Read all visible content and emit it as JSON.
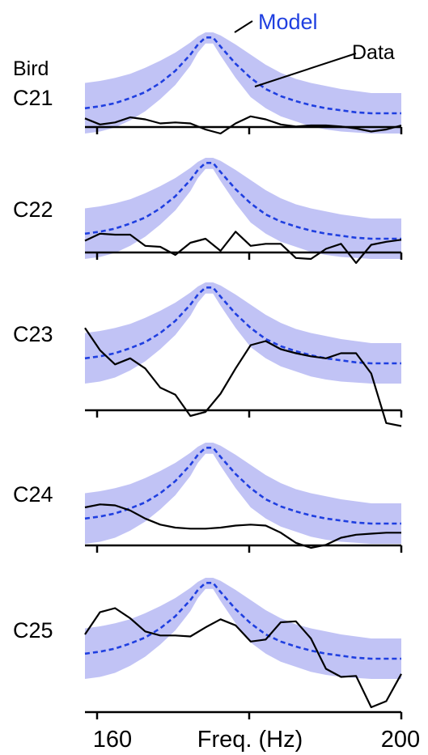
{
  "colors": {
    "model": "#1f3fe0",
    "band": "#b6b8f3",
    "data": "#000000",
    "axis": "#000000"
  },
  "annotations": {
    "model_label": "Model",
    "data_label": "Data",
    "bird_label": "Bird"
  },
  "x_axis": {
    "label": "Freq. (Hz)",
    "tick_labels": [
      "160",
      "200"
    ],
    "range": [
      158,
      200
    ]
  },
  "chart_data": [
    {
      "type": "line",
      "panel": "C21",
      "series": [
        {
          "name": "Model",
          "style": "dashed",
          "x": [
            158,
            160,
            162,
            164,
            166,
            168,
            170,
            172,
            173,
            174,
            175,
            176,
            178,
            180,
            182,
            184,
            186,
            188,
            190,
            192,
            194,
            196,
            198,
            200
          ],
          "y": [
            0.25,
            0.27,
            0.3,
            0.35,
            0.41,
            0.5,
            0.62,
            0.78,
            0.88,
            0.95,
            0.95,
            0.86,
            0.69,
            0.55,
            0.44,
            0.37,
            0.32,
            0.28,
            0.25,
            0.23,
            0.21,
            0.2,
            0.2,
            0.2
          ]
        },
        {
          "name": "Data",
          "x": [
            158,
            160,
            162,
            164,
            166,
            168,
            170,
            172,
            174,
            176,
            178,
            180,
            182,
            184,
            186,
            188,
            190,
            192,
            194,
            196,
            198,
            200
          ],
          "y": [
            0.15,
            0.09,
            0.11,
            0.16,
            0.14,
            0.1,
            0.11,
            0.1,
            0.04,
            0.0,
            0.1,
            0.17,
            0.14,
            0.09,
            0.07,
            0.08,
            0.08,
            0.07,
            0.05,
            0.02,
            0.04,
            0.08
          ]
        }
      ],
      "band": {
        "lower": [
          0.0,
          0.02,
          0.06,
          0.13,
          0.22,
          0.34,
          0.48,
          0.67,
          0.8,
          0.89,
          0.89,
          0.77,
          0.55,
          0.36,
          0.25,
          0.17,
          0.12,
          0.07,
          0.04,
          0.02,
          0.01,
          0.0,
          0.0,
          0.0
        ],
        "upper": [
          0.5,
          0.52,
          0.55,
          0.59,
          0.65,
          0.72,
          0.8,
          0.9,
          0.96,
          1.0,
          1.0,
          0.97,
          0.88,
          0.78,
          0.68,
          0.6,
          0.54,
          0.5,
          0.47,
          0.44,
          0.42,
          0.4,
          0.4,
          0.4
        ]
      }
    },
    {
      "type": "line",
      "panel": "C22",
      "series": [
        {
          "name": "Model",
          "style": "dashed",
          "x": [
            158,
            160,
            162,
            164,
            166,
            168,
            170,
            172,
            173,
            174,
            175,
            176,
            178,
            180,
            182,
            184,
            186,
            188,
            190,
            192,
            194,
            196,
            198,
            200
          ],
          "y": [
            0.25,
            0.27,
            0.3,
            0.35,
            0.41,
            0.5,
            0.62,
            0.78,
            0.88,
            0.95,
            0.95,
            0.86,
            0.69,
            0.55,
            0.44,
            0.37,
            0.32,
            0.28,
            0.25,
            0.23,
            0.21,
            0.2,
            0.2,
            0.2
          ]
        },
        {
          "name": "Data",
          "x": [
            158,
            160,
            162,
            164,
            166,
            168,
            170,
            172,
            174,
            176,
            178,
            180,
            182,
            184,
            186,
            188,
            190,
            192,
            194,
            196,
            198,
            200
          ],
          "y": [
            0.18,
            0.25,
            0.24,
            0.24,
            0.13,
            0.12,
            0.04,
            0.16,
            0.2,
            0.08,
            0.27,
            0.13,
            0.15,
            0.15,
            0.01,
            0.0,
            0.1,
            0.15,
            -0.04,
            0.14,
            0.17,
            0.19
          ]
        }
      ],
      "band": {
        "lower": [
          0.0,
          0.02,
          0.06,
          0.13,
          0.22,
          0.34,
          0.48,
          0.67,
          0.8,
          0.89,
          0.89,
          0.77,
          0.55,
          0.36,
          0.25,
          0.17,
          0.12,
          0.07,
          0.04,
          0.02,
          0.01,
          0.0,
          0.0,
          0.0
        ],
        "upper": [
          0.5,
          0.52,
          0.55,
          0.59,
          0.65,
          0.72,
          0.8,
          0.9,
          0.96,
          1.0,
          1.0,
          0.97,
          0.88,
          0.78,
          0.68,
          0.6,
          0.54,
          0.5,
          0.47,
          0.44,
          0.42,
          0.4,
          0.4,
          0.4
        ]
      }
    },
    {
      "type": "line",
      "panel": "C23",
      "series": [
        {
          "name": "Model",
          "style": "dashed",
          "x": [
            158,
            160,
            162,
            164,
            166,
            168,
            170,
            172,
            173,
            174,
            175,
            176,
            178,
            180,
            182,
            184,
            186,
            188,
            190,
            192,
            194,
            196,
            198,
            200
          ],
          "y": [
            0.25,
            0.27,
            0.3,
            0.35,
            0.41,
            0.5,
            0.62,
            0.78,
            0.88,
            0.95,
            0.95,
            0.86,
            0.69,
            0.55,
            0.44,
            0.37,
            0.32,
            0.28,
            0.25,
            0.23,
            0.21,
            0.2,
            0.2,
            0.2
          ]
        },
        {
          "name": "Data",
          "x": [
            158,
            160,
            162,
            164,
            166,
            168,
            170,
            172,
            174,
            176,
            178,
            180,
            182,
            184,
            186,
            188,
            190,
            192,
            194,
            196,
            198,
            200
          ],
          "y": [
            0.55,
            0.33,
            0.19,
            0.25,
            0.15,
            -0.04,
            -0.11,
            -0.32,
            -0.28,
            -0.1,
            0.15,
            0.38,
            0.42,
            0.34,
            0.3,
            0.27,
            0.25,
            0.3,
            0.3,
            0.1,
            -0.39,
            -0.42
          ]
        }
      ],
      "band": {
        "lower": [
          0.0,
          0.02,
          0.06,
          0.13,
          0.22,
          0.34,
          0.48,
          0.67,
          0.8,
          0.89,
          0.89,
          0.77,
          0.55,
          0.36,
          0.25,
          0.17,
          0.12,
          0.07,
          0.04,
          0.02,
          0.01,
          0.0,
          0.0,
          0.0
        ],
        "upper": [
          0.5,
          0.52,
          0.55,
          0.59,
          0.65,
          0.72,
          0.8,
          0.9,
          0.96,
          1.0,
          1.0,
          0.97,
          0.88,
          0.78,
          0.68,
          0.6,
          0.54,
          0.5,
          0.47,
          0.44,
          0.42,
          0.4,
          0.4,
          0.4
        ]
      }
    },
    {
      "type": "line",
      "panel": "C24",
      "series": [
        {
          "name": "Model",
          "style": "dashed",
          "x": [
            158,
            160,
            162,
            164,
            166,
            168,
            170,
            172,
            173,
            174,
            175,
            176,
            178,
            180,
            182,
            184,
            186,
            188,
            190,
            192,
            194,
            196,
            198,
            200
          ],
          "y": [
            0.25,
            0.27,
            0.3,
            0.35,
            0.41,
            0.5,
            0.62,
            0.78,
            0.88,
            0.95,
            0.95,
            0.86,
            0.69,
            0.55,
            0.44,
            0.37,
            0.32,
            0.28,
            0.25,
            0.23,
            0.21,
            0.2,
            0.2,
            0.2
          ]
        },
        {
          "name": "Data",
          "x": [
            158,
            160,
            162,
            164,
            166,
            168,
            170,
            172,
            174,
            176,
            178,
            180,
            182,
            184,
            186,
            188,
            190,
            192,
            194,
            196,
            198,
            200
          ],
          "y": [
            0.36,
            0.39,
            0.38,
            0.33,
            0.25,
            0.19,
            0.16,
            0.15,
            0.15,
            0.16,
            0.18,
            0.19,
            0.18,
            0.11,
            0.01,
            -0.04,
            -0.01,
            0.06,
            0.09,
            0.1,
            0.11,
            0.11
          ]
        }
      ],
      "band": {
        "lower": [
          0.0,
          0.02,
          0.06,
          0.13,
          0.22,
          0.34,
          0.48,
          0.67,
          0.8,
          0.89,
          0.89,
          0.77,
          0.55,
          0.36,
          0.25,
          0.17,
          0.12,
          0.07,
          0.04,
          0.02,
          0.01,
          0.0,
          0.0,
          0.0
        ],
        "upper": [
          0.5,
          0.52,
          0.55,
          0.59,
          0.65,
          0.72,
          0.8,
          0.9,
          0.96,
          1.0,
          1.0,
          0.97,
          0.88,
          0.78,
          0.68,
          0.6,
          0.54,
          0.5,
          0.47,
          0.44,
          0.42,
          0.4,
          0.4,
          0.4
        ]
      }
    },
    {
      "type": "line",
      "panel": "C25",
      "series": [
        {
          "name": "Model",
          "style": "dashed",
          "x": [
            158,
            160,
            162,
            164,
            166,
            168,
            170,
            172,
            173,
            174,
            175,
            176,
            178,
            180,
            182,
            184,
            186,
            188,
            190,
            192,
            194,
            196,
            198,
            200
          ],
          "y": [
            0.25,
            0.27,
            0.3,
            0.35,
            0.41,
            0.5,
            0.62,
            0.78,
            0.88,
            0.95,
            0.95,
            0.86,
            0.69,
            0.55,
            0.44,
            0.37,
            0.32,
            0.28,
            0.25,
            0.23,
            0.21,
            0.2,
            0.2,
            0.2
          ]
        },
        {
          "name": "Data",
          "x": [
            158,
            160,
            162,
            164,
            166,
            168,
            170,
            172,
            174,
            176,
            178,
            180,
            182,
            184,
            186,
            188,
            190,
            192,
            194,
            196,
            198,
            200
          ],
          "y": [
            0.44,
            0.66,
            0.7,
            0.6,
            0.47,
            0.43,
            0.43,
            0.42,
            0.51,
            0.59,
            0.53,
            0.37,
            0.39,
            0.56,
            0.57,
            0.4,
            0.1,
            0.02,
            0.03,
            -0.28,
            -0.22,
            0.05
          ]
        }
      ],
      "band": {
        "lower": [
          0.0,
          0.02,
          0.06,
          0.13,
          0.22,
          0.34,
          0.48,
          0.67,
          0.8,
          0.89,
          0.89,
          0.77,
          0.55,
          0.36,
          0.25,
          0.17,
          0.12,
          0.07,
          0.04,
          0.02,
          0.01,
          0.0,
          0.0,
          0.0
        ],
        "upper": [
          0.5,
          0.52,
          0.55,
          0.59,
          0.65,
          0.72,
          0.8,
          0.9,
          0.96,
          1.0,
          1.0,
          0.97,
          0.88,
          0.78,
          0.68,
          0.6,
          0.54,
          0.5,
          0.47,
          0.44,
          0.42,
          0.4,
          0.4,
          0.4
        ]
      }
    }
  ]
}
